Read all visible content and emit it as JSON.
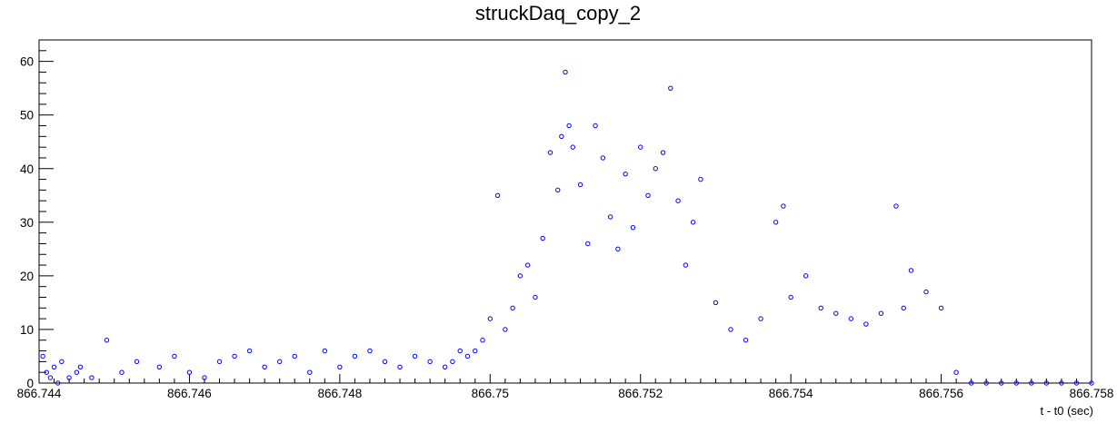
{
  "chart_data": {
    "type": "scatter",
    "title": "struckDaq_copy_2",
    "xlabel": "t - t0 (sec)",
    "ylabel": "",
    "xlim": [
      866.744,
      866.758
    ],
    "ylim": [
      0,
      64
    ],
    "x_ticks": [
      "866.744",
      "866.746",
      "866.748",
      "866.75",
      "866.752",
      "866.754",
      "866.756",
      "866.758"
    ],
    "x_tick_values": [
      866.744,
      866.746,
      866.748,
      866.75,
      866.752,
      866.754,
      866.756,
      866.758
    ],
    "y_ticks": [
      "0",
      "10",
      "20",
      "30",
      "40",
      "50",
      "60"
    ],
    "y_tick_values": [
      0,
      10,
      20,
      30,
      40,
      50,
      60
    ],
    "grid": false,
    "marker": "open-circle",
    "series": [
      {
        "color": "#0000ff",
        "x": [
          866.74405,
          866.7441,
          866.74415,
          866.7442,
          866.74425,
          866.7443,
          866.7444,
          866.7445,
          866.74455,
          866.7447,
          866.7449,
          866.7451,
          866.7453,
          866.7456,
          866.7458,
          866.746,
          866.7462,
          866.7464,
          866.7466,
          866.7468,
          866.747,
          866.7472,
          866.7474,
          866.7476,
          866.7478,
          866.748,
          866.7482,
          866.7484,
          866.7486,
          866.7488,
          866.749,
          866.7492,
          866.7494,
          866.7495,
          866.7496,
          866.7497,
          866.7498,
          866.7499,
          866.75,
          866.7501,
          866.7502,
          866.7503,
          866.7504,
          866.7505,
          866.7506,
          866.7507,
          866.7508,
          866.7509,
          866.75095,
          866.751,
          866.75105,
          866.7511,
          866.7512,
          866.7513,
          866.7514,
          866.7515,
          866.7516,
          866.7517,
          866.7518,
          866.7519,
          866.752,
          866.7521,
          866.7522,
          866.7523,
          866.7524,
          866.7525,
          866.7526,
          866.7527,
          866.7528,
          866.753,
          866.7532,
          866.7534,
          866.7536,
          866.7538,
          866.7539,
          866.754,
          866.7542,
          866.7544,
          866.7546,
          866.7548,
          866.755,
          866.7552,
          866.7554,
          866.7555,
          866.7556,
          866.7558,
          866.756,
          866.7562,
          866.7564,
          866.7566,
          866.7568,
          866.757,
          866.7572,
          866.7574,
          866.7576,
          866.7578,
          866.758
        ],
        "y": [
          5,
          2,
          1,
          3,
          0,
          4,
          1,
          2,
          3,
          1,
          8,
          2,
          4,
          3,
          5,
          2,
          1,
          4,
          5,
          6,
          3,
          4,
          5,
          2,
          6,
          3,
          5,
          6,
          4,
          3,
          5,
          4,
          3,
          4,
          6,
          5,
          6,
          8,
          12,
          35,
          10,
          14,
          20,
          22,
          16,
          27,
          43,
          36,
          46,
          58,
          48,
          44,
          37,
          26,
          48,
          42,
          31,
          25,
          39,
          29,
          44,
          35,
          40,
          43,
          55,
          34,
          22,
          30,
          38,
          15,
          10,
          8,
          12,
          30,
          33,
          16,
          20,
          14,
          13,
          12,
          11,
          13,
          33,
          14,
          21,
          17,
          14,
          2,
          0,
          0,
          0,
          0,
          0,
          0,
          0,
          0,
          0
        ]
      }
    ]
  }
}
